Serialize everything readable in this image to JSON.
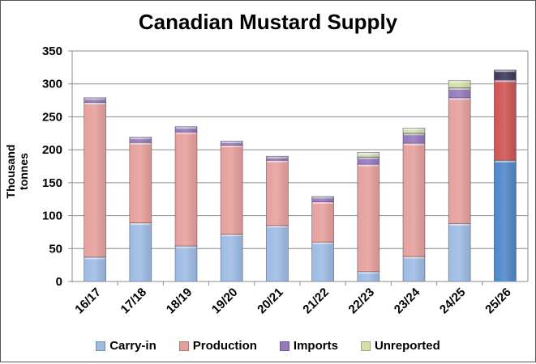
{
  "chart_data": {
    "type": "bar",
    "stacked": true,
    "title": "Canadian Mustard Supply",
    "xlabel": "",
    "ylabel": "Thousand tonnes",
    "ylim": [
      0,
      350
    ],
    "yticks": [
      "0",
      "50",
      "100",
      "150",
      "200",
      "250",
      "300",
      "350"
    ],
    "grid": true,
    "legend_position": "bottom",
    "categories": [
      "16/17",
      "17/18",
      "18/19",
      "19/20",
      "20/21",
      "21/22",
      "22/23",
      "23/24",
      "24/25",
      "25/26"
    ],
    "series": [
      {
        "name": "Carry-in",
        "color": "#9dbbe3",
        "highlight_color": "#4f86c8",
        "values": [
          37,
          89,
          54,
          72,
          85,
          60,
          15,
          38,
          88,
          184
        ]
      },
      {
        "name": "Production",
        "color": "#e6a09c",
        "highlight_color": "#cd5552",
        "values": [
          235,
          122,
          173,
          135,
          99,
          61,
          163,
          172,
          191,
          122
        ]
      },
      {
        "name": "Imports",
        "color": "#9678bd",
        "highlight_color": "#3f3659",
        "values": [
          7,
          8,
          8,
          6,
          6,
          8,
          11,
          15,
          15,
          15
        ]
      },
      {
        "name": "Unreported",
        "color": "#d3e0a6",
        "highlight_color": "#d3e0a6",
        "values": [
          0,
          0,
          0,
          0,
          0,
          0,
          7,
          8,
          11,
          0
        ]
      }
    ],
    "highlighted_category": "25/26"
  }
}
